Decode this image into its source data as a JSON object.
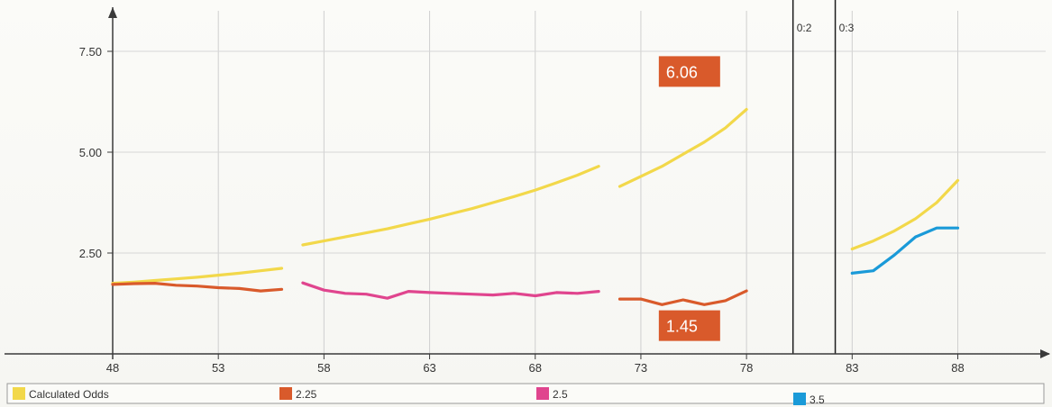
{
  "chart_data": {
    "type": "line",
    "title": "",
    "xlabel": "",
    "ylabel": "",
    "xlim": [
      48,
      91
    ],
    "ylim": [
      0,
      8.25
    ],
    "x_ticks": [
      {
        "value": 48,
        "label": "48"
      },
      {
        "value": 53,
        "label": "53"
      },
      {
        "value": 58,
        "label": "58"
      },
      {
        "value": 63,
        "label": "63"
      },
      {
        "value": 68,
        "label": "68"
      },
      {
        "value": 73,
        "label": "73"
      },
      {
        "value": 78,
        "label": "78"
      },
      {
        "value": 83,
        "label": "83"
      },
      {
        "value": 88,
        "label": "88"
      }
    ],
    "y_ticks": [
      {
        "value": 2.5,
        "label": "2.50"
      },
      {
        "value": 5.0,
        "label": "5.00"
      },
      {
        "value": 7.5,
        "label": "7.50"
      }
    ],
    "period_markers": [
      {
        "x": 80.2,
        "label": "0:2"
      },
      {
        "x": 82.2,
        "label": "0:3"
      }
    ],
    "grid": true,
    "legend_position": "bottom",
    "series": [
      {
        "name": "Calculated Odds",
        "color": "#f2d84a",
        "segments": [
          [
            [
              48,
              1.75
            ],
            [
              49,
              1.78
            ],
            [
              50,
              1.82
            ],
            [
              51,
              1.86
            ],
            [
              52,
              1.9
            ],
            [
              53,
              1.95
            ],
            [
              54,
              2.0
            ],
            [
              55,
              2.06
            ],
            [
              56,
              2.12
            ]
          ],
          [
            [
              57,
              2.7
            ],
            [
              58,
              2.8
            ],
            [
              59,
              2.9
            ],
            [
              60,
              3.0
            ],
            [
              61,
              3.1
            ],
            [
              62,
              3.22
            ],
            [
              63,
              3.34
            ],
            [
              64,
              3.47
            ],
            [
              65,
              3.6
            ],
            [
              66,
              3.75
            ],
            [
              67,
              3.9
            ],
            [
              68,
              4.06
            ],
            [
              69,
              4.24
            ],
            [
              70,
              4.43
            ],
            [
              71,
              4.65
            ]
          ],
          [
            [
              72,
              4.15
            ],
            [
              73,
              4.4
            ],
            [
              74,
              4.65
            ],
            [
              75,
              4.95
            ],
            [
              76,
              5.25
            ],
            [
              77,
              5.6
            ],
            [
              78,
              6.06
            ]
          ],
          [
            [
              83,
              2.6
            ],
            [
              84,
              2.8
            ],
            [
              85,
              3.05
            ],
            [
              86,
              3.35
            ],
            [
              87,
              3.75
            ],
            [
              88,
              4.3
            ]
          ]
        ]
      },
      {
        "name": "2.25",
        "color": "#d95a2b",
        "segments": [
          [
            [
              48,
              1.72
            ],
            [
              49,
              1.74
            ],
            [
              50,
              1.75
            ],
            [
              51,
              1.7
            ],
            [
              52,
              1.68
            ],
            [
              53,
              1.64
            ],
            [
              54,
              1.62
            ],
            [
              55,
              1.56
            ],
            [
              56,
              1.6
            ]
          ],
          [
            [
              72,
              1.36
            ],
            [
              73,
              1.36
            ],
            [
              74,
              1.22
            ],
            [
              75,
              1.34
            ],
            [
              76,
              1.22
            ],
            [
              77,
              1.32
            ],
            [
              78,
              1.56
            ]
          ]
        ]
      },
      {
        "name": "2.5",
        "color": "#e0458e",
        "segments": [
          [
            [
              57,
              1.76
            ],
            [
              58,
              1.58
            ],
            [
              59,
              1.5
            ],
            [
              60,
              1.48
            ],
            [
              61,
              1.38
            ],
            [
              62,
              1.55
            ],
            [
              63,
              1.52
            ],
            [
              64,
              1.5
            ],
            [
              65,
              1.48
            ],
            [
              66,
              1.46
            ],
            [
              67,
              1.5
            ],
            [
              68,
              1.44
            ],
            [
              69,
              1.52
            ],
            [
              70,
              1.5
            ],
            [
              71,
              1.55
            ]
          ]
        ]
      },
      {
        "name": "3.5",
        "color": "#1a9ad8",
        "segments": [
          [
            [
              83,
              2.0
            ],
            [
              84,
              2.06
            ],
            [
              85,
              2.45
            ],
            [
              86,
              2.9
            ],
            [
              87,
              3.12
            ],
            [
              88,
              3.12
            ]
          ]
        ]
      }
    ],
    "annotations": [
      {
        "text": "6.06",
        "x": 75.3,
        "y": 7.0,
        "color": "#d95a2b"
      },
      {
        "text": "1.45",
        "x": 75.3,
        "y": 0.7,
        "color": "#d95a2b"
      }
    ]
  },
  "legend": {
    "items": [
      {
        "label": "Calculated Odds",
        "color": "#f2d84a"
      },
      {
        "label": "2.25",
        "color": "#d95a2b"
      },
      {
        "label": "2.5",
        "color": "#e0458e"
      },
      {
        "label": "3.5",
        "color": "#1a9ad8"
      }
    ]
  }
}
